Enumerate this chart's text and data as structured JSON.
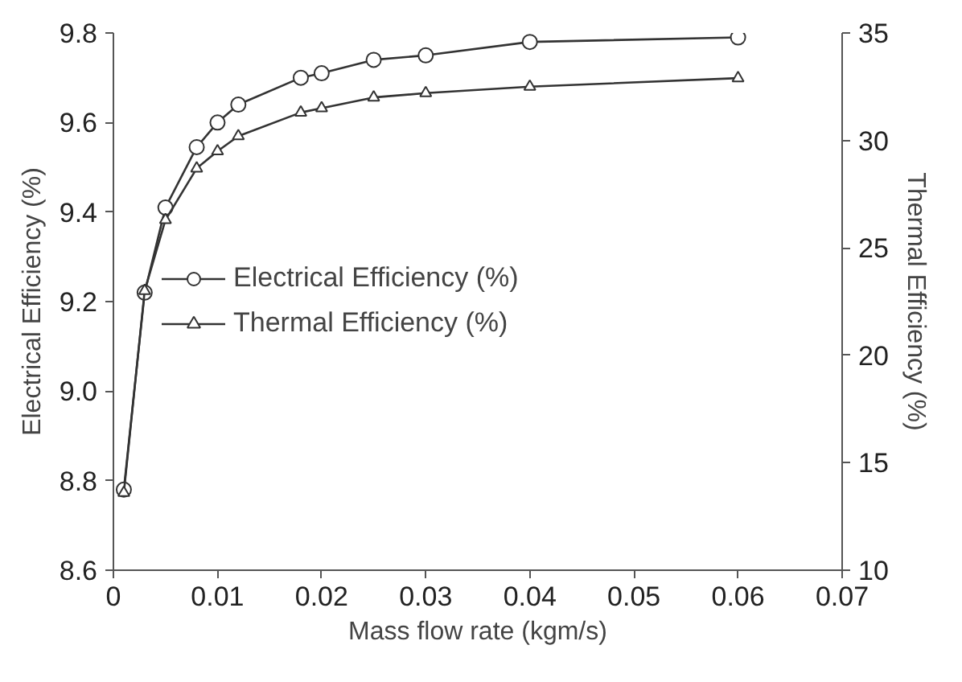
{
  "chart_data": {
    "type": "line",
    "xlabel": "Mass flow rate (kgm/s)",
    "ylabel": "Electrical Efficiency (%)",
    "y2label": "Thermal Efficiency (%)",
    "x": [
      0.001,
      0.003,
      0.005,
      0.008,
      0.01,
      0.012,
      0.018,
      0.02,
      0.025,
      0.03,
      0.04,
      0.06
    ],
    "series": [
      {
        "name": "Electrical Efficiency (%)",
        "color": "#333333",
        "marker": "circle",
        "values": [
          8.78,
          9.22,
          9.41,
          9.545,
          9.6,
          9.64,
          9.7,
          9.71,
          9.74,
          9.75,
          9.78,
          9.79
        ]
      },
      {
        "name": "Thermal Efficiency (%)",
        "color": "#333333",
        "marker": "triangle",
        "axis": "y2",
        "values": [
          13.6,
          23.0,
          26.3,
          28.7,
          29.5,
          30.2,
          31.3,
          31.5,
          32.0,
          32.2,
          32.5,
          32.9
        ]
      }
    ],
    "xlim": [
      0,
      0.07
    ],
    "xticks": [
      {
        "value": 0,
        "label": "0"
      },
      {
        "value": 0.01,
        "label": "0.01"
      },
      {
        "value": 0.02,
        "label": "0.02"
      },
      {
        "value": 0.03,
        "label": "0.03"
      },
      {
        "value": 0.04,
        "label": "0.04"
      },
      {
        "value": 0.05,
        "label": "0.05"
      },
      {
        "value": 0.06,
        "label": "0.06"
      },
      {
        "value": 0.07,
        "label": "0.07"
      }
    ],
    "ylim": [
      8.6,
      9.8
    ],
    "yticks": [
      {
        "value": 8.6,
        "label": "8.6"
      },
      {
        "value": 8.8,
        "label": "8.8"
      },
      {
        "value": 9.0,
        "label": "9.0"
      },
      {
        "value": 9.2,
        "label": "9.2"
      },
      {
        "value": 9.4,
        "label": "9.4"
      },
      {
        "value": 9.6,
        "label": "9.6"
      },
      {
        "value": 9.8,
        "label": "9.8"
      }
    ],
    "y2lim": [
      10,
      35
    ],
    "y2ticks": [
      10,
      15,
      20,
      25,
      30,
      35
    ],
    "legend": "left",
    "grid": false,
    "line_style": "solid"
  }
}
